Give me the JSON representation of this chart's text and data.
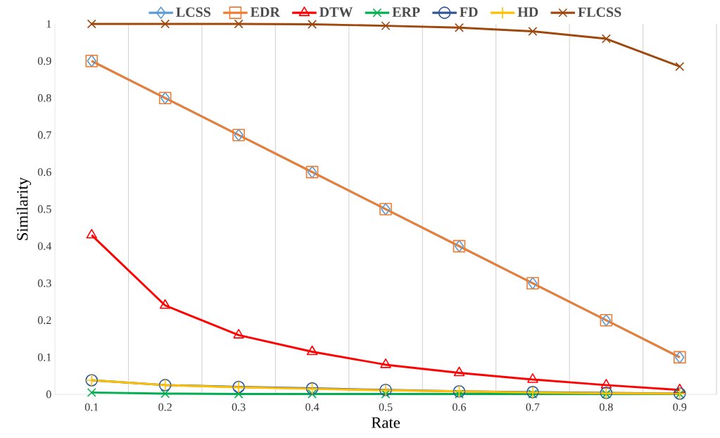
{
  "chart_data": {
    "type": "line",
    "xlabel": "Rate",
    "ylabel": "Similarity",
    "categories": [
      "0.1",
      "0.2",
      "0.3",
      "0.4",
      "0.5",
      "0.6",
      "0.7",
      "0.8",
      "0.9"
    ],
    "ylim": [
      0,
      1
    ],
    "yticks": [
      0,
      0.1,
      0.2,
      0.3,
      0.4,
      0.5,
      0.6,
      0.7,
      0.8,
      0.9,
      1
    ],
    "grid": "x",
    "legend": "top",
    "line_style": "solid",
    "series": [
      {
        "name": "LCSS",
        "color": "#5b9bd5",
        "marker": "diamond",
        "values": [
          0.9,
          0.8,
          0.7,
          0.6,
          0.5,
          0.4,
          0.3,
          0.2,
          0.1
        ]
      },
      {
        "name": "EDR",
        "color": "#ed7d31",
        "marker": "square",
        "values": [
          0.9,
          0.8,
          0.7,
          0.6,
          0.5,
          0.4,
          0.3,
          0.2,
          0.1
        ]
      },
      {
        "name": "DTW",
        "color": "#ff0000",
        "marker": "triangle",
        "values": [
          0.43,
          0.24,
          0.16,
          0.115,
          0.08,
          0.058,
          0.04,
          0.025,
          0.012
        ]
      },
      {
        "name": "ERP",
        "color": "#00b050",
        "marker": "cross",
        "values": [
          0.005,
          0.002,
          0.001,
          0.001,
          0.001,
          0.001,
          0.001,
          0.001,
          0.001
        ]
      },
      {
        "name": "FD",
        "color": "#2f5597",
        "marker": "circle",
        "values": [
          0.038,
          0.025,
          0.02,
          0.016,
          0.012,
          0.008,
          0.006,
          0.004,
          0.002
        ]
      },
      {
        "name": "HD",
        "color": "#ffc000",
        "marker": "plus",
        "values": [
          0.038,
          0.025,
          0.019,
          0.015,
          0.011,
          0.008,
          0.005,
          0.003,
          0.002
        ]
      },
      {
        "name": "FLCSS",
        "color": "#9e480e",
        "marker": "cross",
        "values": [
          1,
          1,
          1,
          0.999,
          0.995,
          0.99,
          0.98,
          0.96,
          0.885
        ]
      }
    ]
  }
}
